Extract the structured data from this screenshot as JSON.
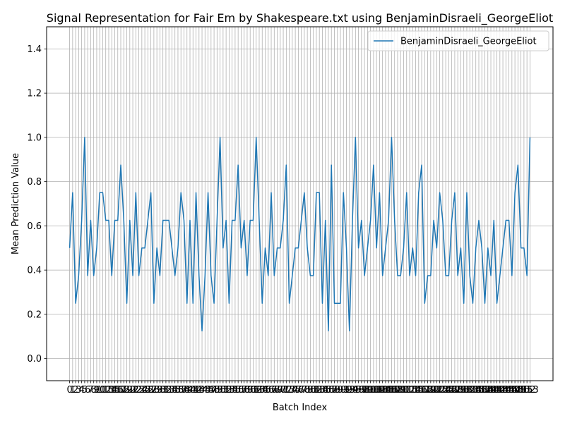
{
  "chart_data": {
    "type": "line",
    "title": "Signal Representation for Fair Em by Shakespeare.txt using BenjaminDisraeli_GeorgeEliot",
    "x_label": "Batch Index",
    "y_label": "Mean Prediction Value",
    "x": [
      0,
      1,
      2,
      3,
      4,
      5,
      6,
      7,
      8,
      9,
      10,
      11,
      12,
      13,
      14,
      15,
      16,
      17,
      18,
      19,
      20,
      21,
      22,
      23,
      24,
      25,
      26,
      27,
      28,
      29,
      30,
      31,
      32,
      33,
      34,
      35,
      36,
      37,
      38,
      39,
      40,
      41,
      42,
      43,
      44,
      45,
      46,
      47,
      48,
      49,
      50,
      51,
      52,
      53,
      54,
      55,
      56,
      57,
      58,
      59,
      60,
      61,
      62,
      63,
      64,
      65,
      66,
      67,
      68,
      69,
      70,
      71,
      72,
      73,
      74,
      75,
      76,
      77,
      78,
      79,
      80,
      81,
      82,
      83,
      84,
      85,
      86,
      87,
      88,
      89,
      90,
      91,
      92,
      93,
      94,
      95,
      96,
      97,
      98,
      99,
      100,
      101,
      102,
      103,
      104,
      105,
      106,
      107,
      108,
      109,
      110,
      111,
      112,
      113,
      114,
      115,
      116,
      117,
      118,
      119,
      120,
      121,
      122,
      123,
      124,
      125,
      126,
      127,
      128,
      129,
      130,
      131,
      132,
      133,
      134,
      135,
      136,
      137,
      138,
      139,
      140,
      141,
      142,
      143,
      144,
      145,
      146,
      147,
      148,
      149,
      150,
      151,
      152,
      153
    ],
    "series": [
      {
        "name": "BenjaminDisraeli_GeorgeEliot",
        "color": "#1f77b4",
        "values": [
          0.5,
          0.75,
          0.25,
          0.375,
          0.625,
          1.0,
          0.375,
          0.625,
          0.375,
          0.5,
          0.75,
          0.75,
          0.625,
          0.625,
          0.375,
          0.625,
          0.625,
          0.875,
          0.625,
          0.25,
          0.625,
          0.375,
          0.75,
          0.375,
          0.5,
          0.5,
          0.625,
          0.75,
          0.25,
          0.5,
          0.375,
          0.625,
          0.625,
          0.625,
          0.5,
          0.375,
          0.5,
          0.75,
          0.625,
          0.25,
          0.625,
          0.25,
          0.75,
          0.375,
          0.125,
          0.375,
          0.75,
          0.375,
          0.25,
          0.625,
          1.0,
          0.5,
          0.625,
          0.25,
          0.625,
          0.625,
          0.875,
          0.5,
          0.625,
          0.375,
          0.625,
          0.625,
          1.0,
          0.625,
          0.25,
          0.5,
          0.375,
          0.75,
          0.375,
          0.5,
          0.5,
          0.625,
          0.875,
          0.25,
          0.375,
          0.5,
          0.5,
          0.625,
          0.75,
          0.5,
          0.375,
          0.375,
          0.75,
          0.75,
          0.25,
          0.625,
          0.125,
          0.875,
          0.25,
          0.25,
          0.25,
          0.75,
          0.5,
          0.125,
          0.625,
          1.0,
          0.5,
          0.625,
          0.375,
          0.5,
          0.625,
          0.875,
          0.5,
          0.75,
          0.375,
          0.5,
          0.625,
          1.0,
          0.625,
          0.375,
          0.375,
          0.5,
          0.75,
          0.375,
          0.5,
          0.375,
          0.75,
          0.875,
          0.25,
          0.375,
          0.375,
          0.625,
          0.5,
          0.75,
          0.625,
          0.375,
          0.375,
          0.625,
          0.75,
          0.375,
          0.5,
          0.25,
          0.75,
          0.375,
          0.25,
          0.5,
          0.625,
          0.5,
          0.25,
          0.5,
          0.375,
          0.625,
          0.25,
          0.375,
          0.5,
          0.625,
          0.625,
          0.375,
          0.75,
          0.875,
          0.5,
          0.5,
          0.375,
          1.0
        ]
      }
    ],
    "xlim": [
      -7.65,
      160.65
    ],
    "xticks": [
      0,
      1,
      2,
      3,
      4,
      5,
      6,
      7,
      8,
      9,
      10,
      11,
      12,
      13,
      14,
      15,
      16,
      17,
      18,
      19,
      20,
      21,
      22,
      23,
      24,
      25,
      26,
      27,
      28,
      29,
      30,
      31,
      32,
      33,
      34,
      35,
      36,
      37,
      38,
      39,
      40,
      41,
      42,
      43,
      44,
      45,
      46,
      47,
      48,
      49,
      50,
      51,
      52,
      53,
      54,
      55,
      56,
      57,
      58,
      59,
      60,
      61,
      62,
      63,
      64,
      65,
      66,
      67,
      68,
      69,
      70,
      71,
      72,
      73,
      74,
      75,
      76,
      77,
      78,
      79,
      80,
      81,
      82,
      83,
      84,
      85,
      86,
      87,
      88,
      89,
      90,
      91,
      92,
      93,
      94,
      95,
      96,
      97,
      98,
      99,
      100,
      101,
      102,
      103,
      104,
      105,
      106,
      107,
      108,
      109,
      110,
      111,
      112,
      113,
      114,
      115,
      116,
      117,
      118,
      119,
      120,
      121,
      122,
      123,
      124,
      125,
      126,
      127,
      128,
      129,
      130,
      131,
      132,
      133,
      134,
      135,
      136,
      137,
      138,
      139,
      140,
      141,
      142,
      143,
      144,
      145,
      146,
      147,
      148,
      149,
      150,
      151,
      152,
      153
    ],
    "ylim": [
      -0.1,
      1.5
    ],
    "yticks": [
      {
        "value": 0,
        "label": "0.0"
      },
      0.2,
      0.4,
      0.6,
      0.8,
      {
        "value": 1,
        "label": "1.0"
      },
      1.2,
      1.4
    ],
    "grid": true,
    "legend": "upper right"
  }
}
